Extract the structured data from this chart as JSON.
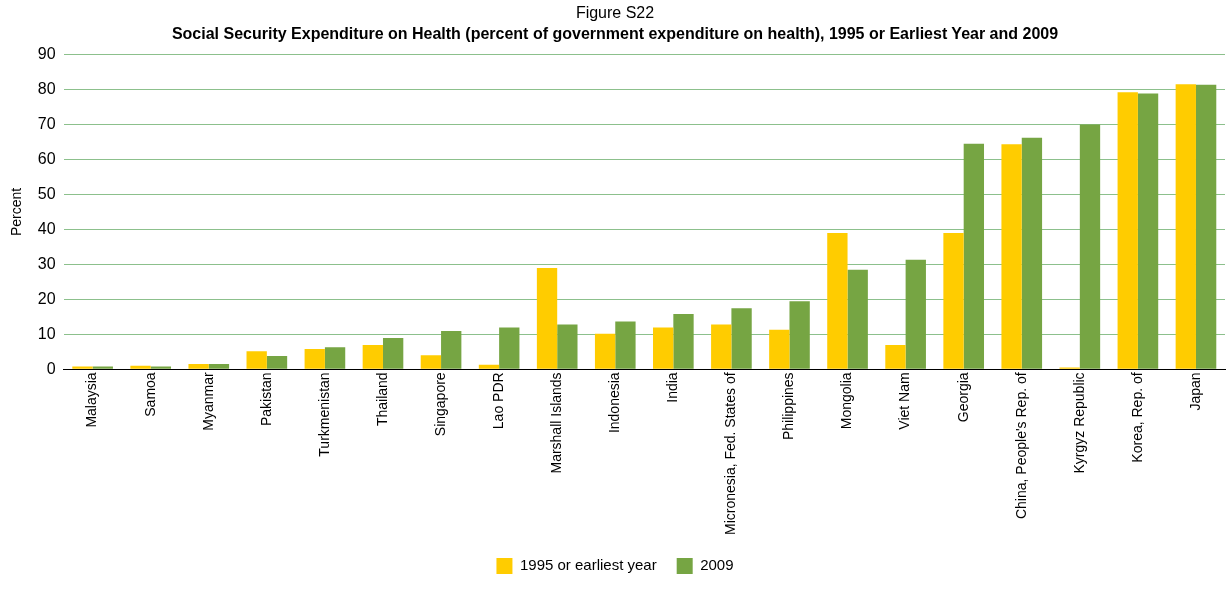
{
  "chart_data": {
    "type": "bar",
    "title": "Figure S22",
    "subtitle": "Social Security Expenditure on Health (percent of government expenditure on health), 1995 or Earliest Year and 2009",
    "ylabel": "Percent",
    "categories": [
      "Malaysia",
      "Samoa",
      "Myanmar",
      "Pakistan",
      "Turkmenistan",
      "Thailand",
      "Singapore",
      "Lao PDR",
      "Marshall Islands",
      "Indonesia",
      "India",
      "Micronesia, Fed. States of",
      "Philippines",
      "Mongolia",
      "Viet Nam",
      "Georgia",
      "China, People's Rep. of",
      "Kyrgyz Republic",
      "Korea, Rep. of",
      "Japan"
    ],
    "series": [
      {
        "name": "1995 or earliest year",
        "color": "#ffcc00",
        "values": [
          0.8,
          1,
          1.5,
          5.2,
          5.8,
          7,
          4,
          1.3,
          29,
          10.2,
          12,
          12.8,
          11.3,
          39,
          7,
          39,
          64.3,
          0.5,
          79.2,
          81.5
        ]
      },
      {
        "name": "2009",
        "color": "#76a543",
        "values": [
          0.8,
          0.8,
          1.5,
          3.8,
          6.3,
          9,
          11,
          12,
          12.8,
          13.7,
          15.8,
          17.5,
          19.5,
          28.5,
          31.3,
          64.5,
          66.2,
          70,
          78.8,
          81.3
        ]
      }
    ],
    "ylim": [
      0,
      90
    ],
    "yticks": [
      0,
      10,
      20,
      30,
      40,
      50,
      60,
      70,
      80,
      90
    ],
    "grid": "y",
    "legend": "bottom"
  }
}
